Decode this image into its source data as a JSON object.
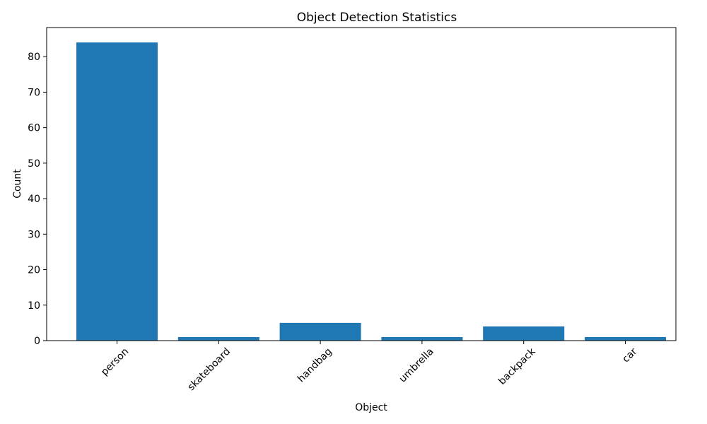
{
  "chart_data": {
    "type": "bar",
    "title": "Object Detection Statistics",
    "xlabel": "Object",
    "ylabel": "Count",
    "categories": [
      "person",
      "skateboard",
      "handbag",
      "umbrella",
      "backpack",
      "car"
    ],
    "values": [
      84,
      1,
      5,
      1,
      4,
      1
    ],
    "ylim": [
      0,
      88.2
    ],
    "yticks": [
      0,
      10,
      20,
      30,
      40,
      50,
      60,
      70,
      80
    ],
    "xtick_rotation": "45 degrees",
    "bar_color": "#1f77b4",
    "grid": false,
    "legend": "none"
  }
}
